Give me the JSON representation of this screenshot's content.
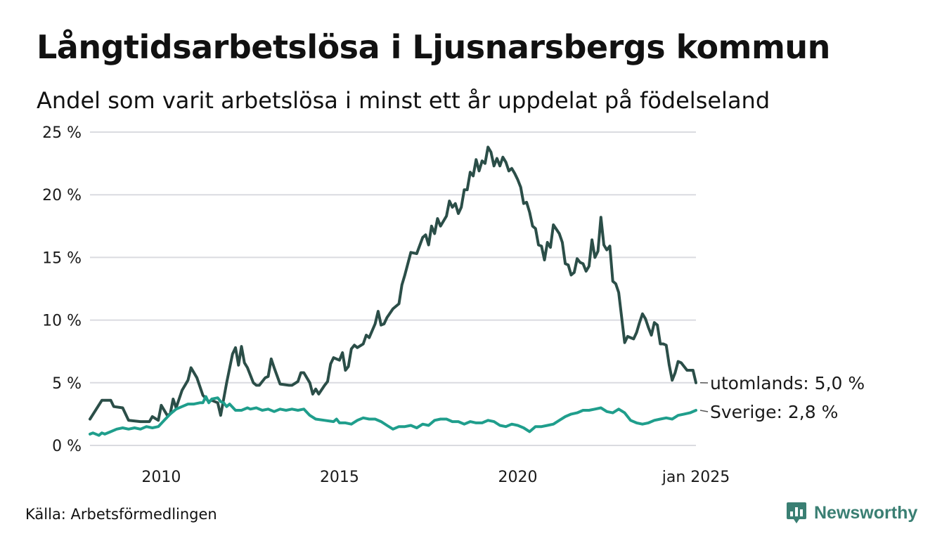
{
  "header": {
    "title": "Långtidsarbetslösa i Ljusnarsbergs kommun",
    "subtitle": "Andel som varit arbetslösa i minst ett år uppdelat på födelseland"
  },
  "footer": {
    "source": "Källa: Arbetsförmedlingen",
    "brand": "Newsworthy"
  },
  "chart_data": {
    "type": "line",
    "x_start": "2008-01",
    "x_end": "2025-01",
    "x_ticks": [
      {
        "x": "2010-01",
        "label": "2010"
      },
      {
        "x": "2015-01",
        "label": "2015"
      },
      {
        "x": "2020-01",
        "label": "2020"
      },
      {
        "x": "2025-01",
        "label": "jan 2025"
      }
    ],
    "y_ticks": [
      {
        "v": 0,
        "label": "0 %"
      },
      {
        "v": 5,
        "label": "5 %"
      },
      {
        "v": 10,
        "label": "10 %"
      },
      {
        "v": 15,
        "label": "15 %"
      },
      {
        "v": 20,
        "label": "20 %"
      },
      {
        "v": 25,
        "label": "25 %"
      }
    ],
    "ylim": [
      0,
      25
    ],
    "grid": true,
    "series": [
      {
        "name": "utomlands",
        "end_label": "utomlands: 5,0 %",
        "color": "#2b4e48",
        "points": [
          [
            "2008-01",
            2.1
          ],
          [
            "2008-05",
            3.6
          ],
          [
            "2008-08",
            3.6
          ],
          [
            "2008-09",
            3.1
          ],
          [
            "2008-12",
            3.0
          ],
          [
            "2009-02",
            2.0
          ],
          [
            "2009-06",
            1.9
          ],
          [
            "2009-09",
            1.9
          ],
          [
            "2009-10",
            2.3
          ],
          [
            "2009-12",
            2.0
          ],
          [
            "2010-01",
            3.2
          ],
          [
            "2010-03",
            2.4
          ],
          [
            "2010-04",
            2.5
          ],
          [
            "2010-05",
            3.7
          ],
          [
            "2010-06",
            3.0
          ],
          [
            "2010-08",
            4.4
          ],
          [
            "2010-10",
            5.2
          ],
          [
            "2010-11",
            6.2
          ],
          [
            "2011-01",
            5.4
          ],
          [
            "2011-03",
            4.0
          ],
          [
            "2011-05",
            3.5
          ],
          [
            "2011-06",
            3.6
          ],
          [
            "2011-08",
            3.4
          ],
          [
            "2011-09",
            2.4
          ],
          [
            "2011-11",
            5.0
          ],
          [
            "2012-01",
            7.3
          ],
          [
            "2012-02",
            7.8
          ],
          [
            "2012-03",
            6.4
          ],
          [
            "2012-04",
            7.9
          ],
          [
            "2012-05",
            6.6
          ],
          [
            "2012-06",
            6.2
          ],
          [
            "2012-08",
            5.0
          ],
          [
            "2012-09",
            4.8
          ],
          [
            "2012-10",
            4.8
          ],
          [
            "2012-12",
            5.4
          ],
          [
            "2013-01",
            5.5
          ],
          [
            "2013-02",
            6.9
          ],
          [
            "2013-03",
            6.2
          ],
          [
            "2013-05",
            4.9
          ],
          [
            "2013-08",
            4.8
          ],
          [
            "2013-09",
            4.8
          ],
          [
            "2013-11",
            5.1
          ],
          [
            "2013-12",
            5.8
          ],
          [
            "2014-01",
            5.8
          ],
          [
            "2014-03",
            5.0
          ],
          [
            "2014-04",
            4.1
          ],
          [
            "2014-05",
            4.5
          ],
          [
            "2014-06",
            4.1
          ],
          [
            "2014-08",
            4.8
          ],
          [
            "2014-09",
            5.1
          ],
          [
            "2014-10",
            6.5
          ],
          [
            "2014-11",
            7.0
          ],
          [
            "2015-01",
            6.8
          ],
          [
            "2015-02",
            7.4
          ],
          [
            "2015-03",
            6.0
          ],
          [
            "2015-04",
            6.3
          ],
          [
            "2015-05",
            7.7
          ],
          [
            "2015-06",
            8.0
          ],
          [
            "2015-07",
            7.8
          ],
          [
            "2015-09",
            8.1
          ],
          [
            "2015-10",
            8.8
          ],
          [
            "2015-11",
            8.6
          ],
          [
            "2016-01",
            9.7
          ],
          [
            "2016-02",
            10.7
          ],
          [
            "2016-03",
            9.6
          ],
          [
            "2016-04",
            9.7
          ],
          [
            "2016-05",
            10.2
          ],
          [
            "2016-07",
            10.9
          ],
          [
            "2016-09",
            11.3
          ],
          [
            "2016-10",
            12.8
          ],
          [
            "2016-11",
            13.6
          ],
          [
            "2017-01",
            15.4
          ],
          [
            "2017-03",
            15.3
          ],
          [
            "2017-05",
            16.6
          ],
          [
            "2017-06",
            16.8
          ],
          [
            "2017-07",
            16.0
          ],
          [
            "2017-08",
            17.5
          ],
          [
            "2017-09",
            16.9
          ],
          [
            "2017-10",
            18.1
          ],
          [
            "2017-11",
            17.5
          ],
          [
            "2018-01",
            18.3
          ],
          [
            "2018-02",
            19.5
          ],
          [
            "2018-03",
            19.0
          ],
          [
            "2018-04",
            19.3
          ],
          [
            "2018-05",
            18.5
          ],
          [
            "2018-06",
            19.0
          ],
          [
            "2018-07",
            20.4
          ],
          [
            "2018-08",
            20.4
          ],
          [
            "2018-09",
            21.8
          ],
          [
            "2018-10",
            21.5
          ],
          [
            "2018-11",
            22.8
          ],
          [
            "2018-12",
            21.9
          ],
          [
            "2019-01",
            22.7
          ],
          [
            "2019-02",
            22.5
          ],
          [
            "2019-03",
            23.8
          ],
          [
            "2019-04",
            23.4
          ],
          [
            "2019-05",
            22.3
          ],
          [
            "2019-06",
            22.9
          ],
          [
            "2019-07",
            22.3
          ],
          [
            "2019-08",
            23.0
          ],
          [
            "2019-09",
            22.6
          ],
          [
            "2019-10",
            21.9
          ],
          [
            "2019-11",
            22.1
          ],
          [
            "2019-12",
            21.7
          ],
          [
            "2020-01",
            21.2
          ],
          [
            "2020-02",
            20.6
          ],
          [
            "2020-03",
            19.3
          ],
          [
            "2020-04",
            19.4
          ],
          [
            "2020-05",
            18.6
          ],
          [
            "2020-06",
            17.5
          ],
          [
            "2020-07",
            17.3
          ],
          [
            "2020-08",
            16.0
          ],
          [
            "2020-09",
            15.9
          ],
          [
            "2020-10",
            14.8
          ],
          [
            "2020-11",
            16.2
          ],
          [
            "2020-12",
            15.8
          ],
          [
            "2021-01",
            17.6
          ],
          [
            "2021-03",
            16.9
          ],
          [
            "2021-04",
            16.2
          ],
          [
            "2021-05",
            14.5
          ],
          [
            "2021-06",
            14.4
          ],
          [
            "2021-07",
            13.6
          ],
          [
            "2021-08",
            13.8
          ],
          [
            "2021-09",
            14.9
          ],
          [
            "2021-10",
            14.6
          ],
          [
            "2021-11",
            14.5
          ],
          [
            "2021-12",
            13.9
          ],
          [
            "2022-01",
            14.3
          ],
          [
            "2022-02",
            16.4
          ],
          [
            "2022-03",
            15.0
          ],
          [
            "2022-04",
            15.5
          ],
          [
            "2022-05",
            18.2
          ],
          [
            "2022-06",
            16.0
          ],
          [
            "2022-07",
            15.6
          ],
          [
            "2022-08",
            15.9
          ],
          [
            "2022-09",
            13.1
          ],
          [
            "2022-10",
            12.9
          ],
          [
            "2022-11",
            12.2
          ],
          [
            "2023-01",
            8.2
          ],
          [
            "2023-02",
            8.7
          ],
          [
            "2023-03",
            8.6
          ],
          [
            "2023-04",
            8.5
          ],
          [
            "2023-05",
            9.0
          ],
          [
            "2023-06",
            9.8
          ],
          [
            "2023-07",
            10.5
          ],
          [
            "2023-08",
            10.1
          ],
          [
            "2023-09",
            9.4
          ],
          [
            "2023-10",
            8.8
          ],
          [
            "2023-11",
            9.8
          ],
          [
            "2023-12",
            9.6
          ],
          [
            "2024-01",
            8.1
          ],
          [
            "2024-02",
            8.1
          ],
          [
            "2024-03",
            8.0
          ],
          [
            "2024-04",
            6.4
          ],
          [
            "2024-05",
            5.2
          ],
          [
            "2024-06",
            5.8
          ],
          [
            "2024-07",
            6.7
          ],
          [
            "2024-08",
            6.6
          ],
          [
            "2024-09",
            6.3
          ],
          [
            "2024-10",
            6.0
          ],
          [
            "2024-11",
            6.0
          ],
          [
            "2024-12",
            6.0
          ],
          [
            "2025-01",
            5.0
          ]
        ]
      },
      {
        "name": "Sverige",
        "end_label": "Sverige: 2,8 %",
        "color": "#1f9e8c",
        "points": [
          [
            "2008-01",
            0.9
          ],
          [
            "2008-02",
            1.0
          ],
          [
            "2008-04",
            0.8
          ],
          [
            "2008-05",
            1.0
          ],
          [
            "2008-06",
            0.9
          ],
          [
            "2008-08",
            1.1
          ],
          [
            "2008-10",
            1.3
          ],
          [
            "2008-12",
            1.4
          ],
          [
            "2009-02",
            1.3
          ],
          [
            "2009-04",
            1.4
          ],
          [
            "2009-06",
            1.3
          ],
          [
            "2009-08",
            1.5
          ],
          [
            "2009-10",
            1.4
          ],
          [
            "2009-12",
            1.5
          ],
          [
            "2010-02",
            2.0
          ],
          [
            "2010-04",
            2.5
          ],
          [
            "2010-06",
            2.9
          ],
          [
            "2010-08",
            3.1
          ],
          [
            "2010-10",
            3.3
          ],
          [
            "2010-12",
            3.3
          ],
          [
            "2011-02",
            3.4
          ],
          [
            "2011-03",
            3.4
          ],
          [
            "2011-04",
            3.9
          ],
          [
            "2011-05",
            3.4
          ],
          [
            "2011-06",
            3.7
          ],
          [
            "2011-08",
            3.8
          ],
          [
            "2011-09",
            3.5
          ],
          [
            "2011-10",
            3.4
          ],
          [
            "2011-11",
            3.1
          ],
          [
            "2011-12",
            3.3
          ],
          [
            "2012-02",
            2.8
          ],
          [
            "2012-04",
            2.8
          ],
          [
            "2012-06",
            3.0
          ],
          [
            "2012-07",
            2.9
          ],
          [
            "2012-09",
            3.0
          ],
          [
            "2012-11",
            2.8
          ],
          [
            "2013-01",
            2.9
          ],
          [
            "2013-03",
            2.7
          ],
          [
            "2013-05",
            2.9
          ],
          [
            "2013-07",
            2.8
          ],
          [
            "2013-09",
            2.9
          ],
          [
            "2013-11",
            2.8
          ],
          [
            "2014-01",
            2.9
          ],
          [
            "2014-03",
            2.4
          ],
          [
            "2014-05",
            2.1
          ],
          [
            "2014-08",
            2.0
          ],
          [
            "2014-11",
            1.9
          ],
          [
            "2014-12",
            2.1
          ],
          [
            "2015-01",
            1.8
          ],
          [
            "2015-03",
            1.8
          ],
          [
            "2015-05",
            1.7
          ],
          [
            "2015-07",
            2.0
          ],
          [
            "2015-09",
            2.2
          ],
          [
            "2015-11",
            2.1
          ],
          [
            "2016-01",
            2.1
          ],
          [
            "2016-03",
            1.9
          ],
          [
            "2016-05",
            1.6
          ],
          [
            "2016-07",
            1.3
          ],
          [
            "2016-09",
            1.5
          ],
          [
            "2016-11",
            1.5
          ],
          [
            "2017-01",
            1.6
          ],
          [
            "2017-03",
            1.4
          ],
          [
            "2017-05",
            1.7
          ],
          [
            "2017-07",
            1.6
          ],
          [
            "2017-09",
            2.0
          ],
          [
            "2017-11",
            2.1
          ],
          [
            "2018-01",
            2.1
          ],
          [
            "2018-03",
            1.9
          ],
          [
            "2018-05",
            1.9
          ],
          [
            "2018-07",
            1.7
          ],
          [
            "2018-09",
            1.9
          ],
          [
            "2018-11",
            1.8
          ],
          [
            "2019-01",
            1.8
          ],
          [
            "2019-03",
            2.0
          ],
          [
            "2019-05",
            1.9
          ],
          [
            "2019-07",
            1.6
          ],
          [
            "2019-09",
            1.5
          ],
          [
            "2019-11",
            1.7
          ],
          [
            "2020-01",
            1.6
          ],
          [
            "2020-03",
            1.4
          ],
          [
            "2020-05",
            1.1
          ],
          [
            "2020-07",
            1.5
          ],
          [
            "2020-09",
            1.5
          ],
          [
            "2020-11",
            1.6
          ],
          [
            "2021-01",
            1.7
          ],
          [
            "2021-03",
            2.0
          ],
          [
            "2021-05",
            2.3
          ],
          [
            "2021-07",
            2.5
          ],
          [
            "2021-09",
            2.6
          ],
          [
            "2021-11",
            2.8
          ],
          [
            "2022-01",
            2.8
          ],
          [
            "2022-03",
            2.9
          ],
          [
            "2022-05",
            3.0
          ],
          [
            "2022-07",
            2.7
          ],
          [
            "2022-09",
            2.6
          ],
          [
            "2022-11",
            2.9
          ],
          [
            "2023-01",
            2.6
          ],
          [
            "2023-03",
            2.0
          ],
          [
            "2023-05",
            1.8
          ],
          [
            "2023-07",
            1.7
          ],
          [
            "2023-09",
            1.8
          ],
          [
            "2023-11",
            2.0
          ],
          [
            "2024-01",
            2.1
          ],
          [
            "2024-03",
            2.2
          ],
          [
            "2024-05",
            2.1
          ],
          [
            "2024-07",
            2.4
          ],
          [
            "2024-09",
            2.5
          ],
          [
            "2024-11",
            2.6
          ],
          [
            "2025-01",
            2.8
          ]
        ]
      }
    ]
  },
  "colors": {
    "grid": "#dadbe0",
    "text": "#1a1a1a",
    "brand": "#3a7f73"
  }
}
